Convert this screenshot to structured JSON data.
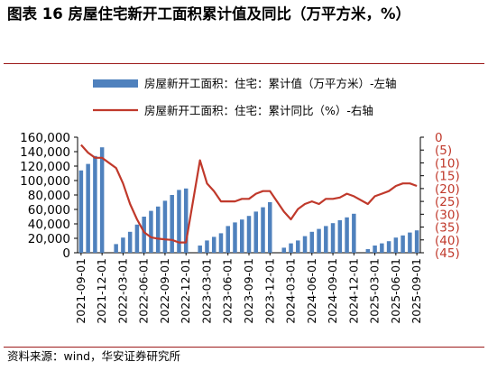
{
  "figure_title": "图表 16 房屋住宅新开工面积累计值及同比（万平方米，%）",
  "source": "资料来源：wind，华安证券研究所",
  "colors": {
    "bar": "#4f81bd",
    "line": "#c0392b",
    "rule": "#9d1a1a",
    "right_axis_text": "#c0392b"
  },
  "chart_data": {
    "type": "bar",
    "x_tick_labels": [
      "2021-09-01",
      "2021-12-01",
      "2022-03-01",
      "2022-06-01",
      "2022-09-01",
      "2022-12-01",
      "2023-03-01",
      "2023-06-01",
      "2023-09-01",
      "2023-12-01",
      "2024-03-01",
      "2024-06-01",
      "2024-09-01",
      "2024-12-01",
      "2025-03-01",
      "2025-06-01",
      "2025-09-01"
    ],
    "left_axis": {
      "ticks": [
        "0",
        "20,000",
        "40,000",
        "60,000",
        "80,000",
        "100,000",
        "120,000",
        "140,000",
        "160,000"
      ],
      "ylim": [
        0,
        160000
      ]
    },
    "right_axis": {
      "ticks": [
        "0",
        "(5)",
        "(10)",
        "(15)",
        "(20)",
        "(25)",
        "(30)",
        "(35)",
        "(40)",
        "(45)"
      ],
      "ylim": [
        -45,
        0
      ],
      "color": "#c0392b"
    },
    "legend_position": "top",
    "series": [
      {
        "name": "房屋新开工面积：住宅：累计值（万平方米）-左轴",
        "kind": "bar",
        "axis": "left",
        "x": [
          "2021-09",
          "2021-10",
          "2021-11",
          "2021-12",
          "2022-01",
          "2022-02",
          "2022-03",
          "2022-04",
          "2022-05",
          "2022-06",
          "2022-07",
          "2022-08",
          "2022-09",
          "2022-10",
          "2022-11",
          "2022-12",
          "2023-01",
          "2023-02",
          "2023-03",
          "2023-04",
          "2023-05",
          "2023-06",
          "2023-07",
          "2023-08",
          "2023-09",
          "2023-10",
          "2023-11",
          "2023-12",
          "2024-01",
          "2024-02",
          "2024-03",
          "2024-04",
          "2024-05",
          "2024-06",
          "2024-07",
          "2024-08",
          "2024-09",
          "2024-10",
          "2024-11",
          "2024-12",
          "2025-01",
          "2025-02",
          "2025-03",
          "2025-04",
          "2025-05",
          "2025-06",
          "2025-07",
          "2025-08",
          "2025-09"
        ],
        "values": [
          114000,
          123000,
          134000,
          146000,
          null,
          12000,
          21000,
          29000,
          39000,
          50000,
          58000,
          64000,
          72000,
          80000,
          87000,
          89000,
          null,
          10000,
          17000,
          22000,
          27000,
          37000,
          42000,
          46000,
          51000,
          57000,
          63000,
          70000,
          null,
          7000,
          13000,
          17000,
          23000,
          29000,
          33000,
          37000,
          41000,
          45000,
          49000,
          54000,
          null,
          5000,
          10000,
          13000,
          16000,
          21000,
          24000,
          28000,
          31000
        ]
      },
      {
        "name": "房屋新开工面积：住宅：累计同比（%）-右轴",
        "kind": "line",
        "axis": "right",
        "x": [
          "2021-09",
          "2021-10",
          "2021-11",
          "2021-12",
          "2022-01",
          "2022-02",
          "2022-03",
          "2022-04",
          "2022-05",
          "2022-06",
          "2022-07",
          "2022-08",
          "2022-09",
          "2022-10",
          "2022-11",
          "2022-12",
          "2023-01",
          "2023-02",
          "2023-03",
          "2023-04",
          "2023-05",
          "2023-06",
          "2023-07",
          "2023-08",
          "2023-09",
          "2023-10",
          "2023-11",
          "2023-12",
          "2024-01",
          "2024-02",
          "2024-03",
          "2024-04",
          "2024-05",
          "2024-06",
          "2024-07",
          "2024-08",
          "2024-09",
          "2024-10",
          "2024-11",
          "2024-12",
          "2025-01",
          "2025-02",
          "2025-03",
          "2025-04",
          "2025-05",
          "2025-06",
          "2025-07",
          "2025-08",
          "2025-09"
        ],
        "values": [
          -3,
          -6,
          -8,
          -8,
          null,
          -12,
          -18,
          -26,
          -32,
          -37,
          -39,
          -39.5,
          -39.8,
          -40,
          -41,
          -41,
          null,
          -9,
          -18,
          -21,
          -25,
          -25,
          -25,
          -24,
          -24,
          -22,
          -21,
          -21,
          null,
          -29,
          -32,
          -28,
          -26,
          -25,
          -26,
          -24,
          -24,
          -23.5,
          -22,
          -23,
          null,
          -26,
          -23,
          -22,
          -21,
          -19,
          -18,
          -18,
          -19
        ]
      }
    ]
  }
}
